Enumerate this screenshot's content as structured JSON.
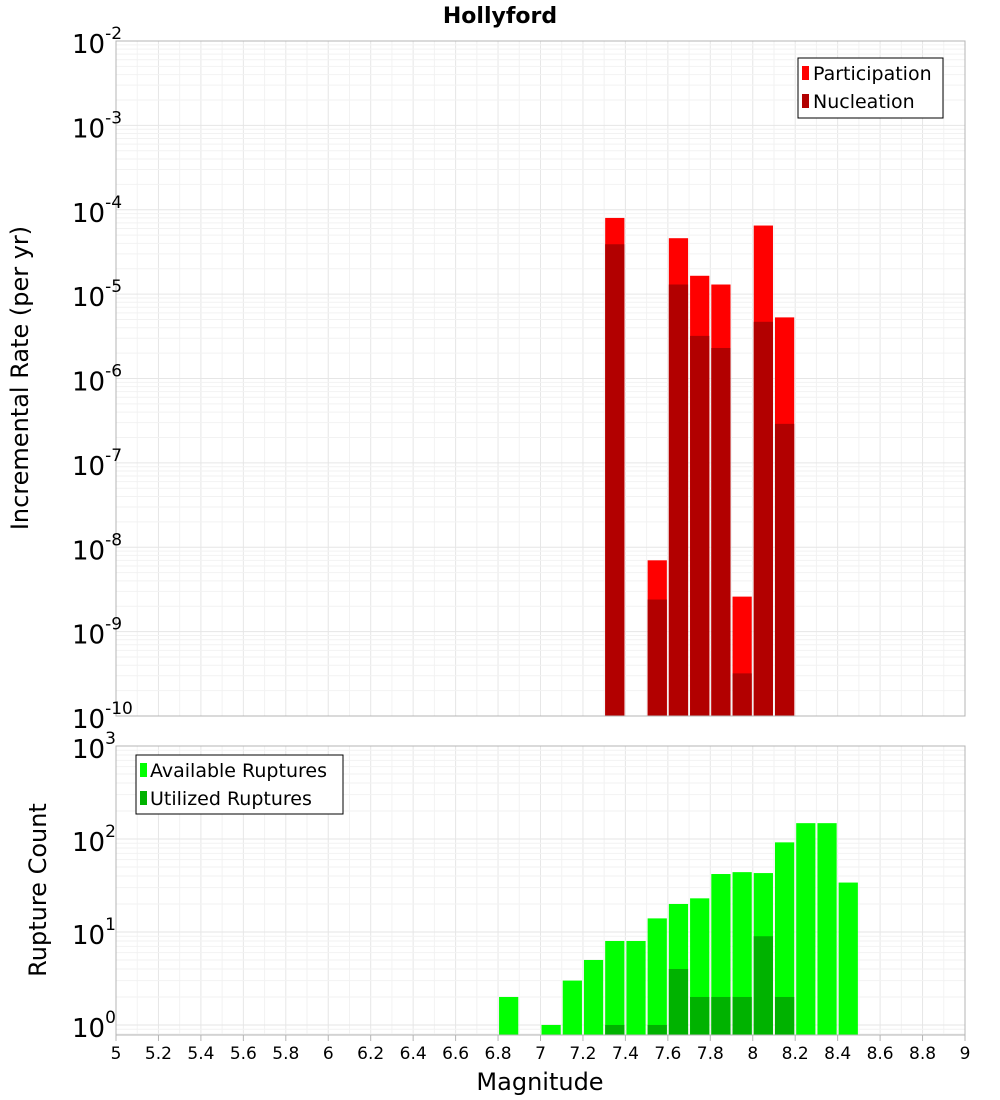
{
  "title": "Hollyford",
  "xlabel": "Magnitude",
  "colors": {
    "participation": "#ff0000",
    "nucleation": "#b20000",
    "available": "#00ff00",
    "utilized": "#00b200",
    "grid_major": "#e6e6e6",
    "grid_minor": "#f2f2f2",
    "frame": "#b4b4b4"
  },
  "chart_data": [
    {
      "type": "bar",
      "ylabel": "Incremental Rate (per yr)",
      "yscale": "log",
      "ylim": [
        1e-10,
        0.01
      ],
      "xlim": [
        5,
        9
      ],
      "bin_width": 0.1,
      "legend_position": "top-right",
      "y_tick_exponents": [
        "-10",
        "-9",
        "-8",
        "-7",
        "-6",
        "-5",
        "-4",
        "-3",
        "-2"
      ],
      "series": [
        {
          "name": "Participation",
          "points": [
            {
              "x": 7.35,
              "y": 8e-05
            },
            {
              "x": 7.55,
              "y": 7e-09
            },
            {
              "x": 7.65,
              "y": 4.6e-05
            },
            {
              "x": 7.75,
              "y": 1.65e-05
            },
            {
              "x": 7.85,
              "y": 1.3e-05
            },
            {
              "x": 7.95,
              "y": 2.6e-09
            },
            {
              "x": 8.05,
              "y": 6.5e-05
            },
            {
              "x": 8.15,
              "y": 5.3e-06
            }
          ]
        },
        {
          "name": "Nucleation",
          "points": [
            {
              "x": 7.35,
              "y": 3.9e-05
            },
            {
              "x": 7.55,
              "y": 2.4e-09
            },
            {
              "x": 7.65,
              "y": 1.3e-05
            },
            {
              "x": 7.75,
              "y": 3.2e-06
            },
            {
              "x": 7.85,
              "y": 2.3e-06
            },
            {
              "x": 7.95,
              "y": 3.2e-10
            },
            {
              "x": 8.05,
              "y": 4.7e-06
            },
            {
              "x": 8.15,
              "y": 2.9e-07
            }
          ]
        }
      ]
    },
    {
      "type": "bar",
      "ylabel": "Rupture Count",
      "yscale": "log",
      "ylim": [
        0.78,
        1000
      ],
      "xlim": [
        5,
        9
      ],
      "bin_width": 0.1,
      "legend_position": "top-left",
      "y_tick_exponents": [
        "0",
        "1",
        "2",
        "3"
      ],
      "x_tick_labels": [
        "5",
        "5.2",
        "5.4",
        "5.6",
        "5.8",
        "6",
        "6.2",
        "6.4",
        "6.6",
        "6.8",
        "7",
        "7.2",
        "7.4",
        "7.6",
        "7.8",
        "8",
        "8.2",
        "8.4",
        "8.6",
        "8.8",
        "9"
      ],
      "series": [
        {
          "name": "Available Ruptures",
          "points": [
            {
              "x": 6.85,
              "y": 2
            },
            {
              "x": 7.05,
              "y": 1
            },
            {
              "x": 7.15,
              "y": 3
            },
            {
              "x": 7.25,
              "y": 5
            },
            {
              "x": 7.35,
              "y": 8
            },
            {
              "x": 7.45,
              "y": 8
            },
            {
              "x": 7.55,
              "y": 14
            },
            {
              "x": 7.65,
              "y": 20
            },
            {
              "x": 7.75,
              "y": 23
            },
            {
              "x": 7.85,
              "y": 42
            },
            {
              "x": 7.95,
              "y": 44
            },
            {
              "x": 8.05,
              "y": 43
            },
            {
              "x": 8.15,
              "y": 92
            },
            {
              "x": 8.25,
              "y": 148
            },
            {
              "x": 8.35,
              "y": 148
            },
            {
              "x": 8.45,
              "y": 34
            }
          ]
        },
        {
          "name": "Utilized Ruptures",
          "points": [
            {
              "x": 7.35,
              "y": 1
            },
            {
              "x": 7.55,
              "y": 1
            },
            {
              "x": 7.65,
              "y": 4
            },
            {
              "x": 7.75,
              "y": 2
            },
            {
              "x": 7.85,
              "y": 2
            },
            {
              "x": 7.95,
              "y": 2
            },
            {
              "x": 8.05,
              "y": 9
            },
            {
              "x": 8.15,
              "y": 2
            }
          ]
        }
      ]
    }
  ]
}
